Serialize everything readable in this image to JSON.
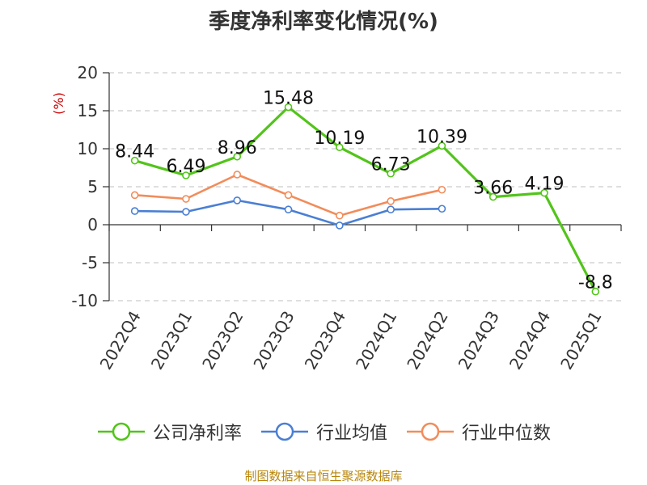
{
  "title": "季度净利率变化情况(%)",
  "source": "制图数据来自恒生聚源数据库",
  "chart_data": {
    "type": "line",
    "title": "季度净利率变化情况(%)",
    "ylabel": "(%)",
    "ylim": [
      -10,
      20
    ],
    "yticks": [
      20,
      15,
      10,
      5,
      0,
      -5,
      -10
    ],
    "grid": true,
    "legend_position": "bottom",
    "categories": [
      "2022Q4",
      "2023Q1",
      "2023Q2",
      "2023Q3",
      "2023Q4",
      "2024Q1",
      "2024Q2",
      "2024Q3",
      "2024Q4",
      "2025Q1"
    ],
    "series": [
      {
        "name": "公司净利率",
        "color": "#52c41a",
        "values": [
          8.44,
          6.49,
          8.96,
          15.48,
          10.19,
          6.73,
          10.39,
          3.66,
          4.19,
          -8.8
        ],
        "labels": [
          "8.44",
          "6.49",
          "8.96",
          "15.48",
          "10.19",
          "6.73",
          "10.39",
          "3.66",
          "4.19",
          "-8.8"
        ]
      },
      {
        "name": "行业均值",
        "color": "#4a7fd4",
        "values": [
          1.8,
          1.7,
          3.2,
          2.0,
          -0.1,
          2.0,
          2.1,
          null,
          null,
          null
        ]
      },
      {
        "name": "行业中位数",
        "color": "#f28c5a",
        "values": [
          3.9,
          3.4,
          6.6,
          3.9,
          1.2,
          3.1,
          4.6,
          null,
          null,
          null
        ]
      }
    ],
    "unit_color": "#cc0000"
  }
}
